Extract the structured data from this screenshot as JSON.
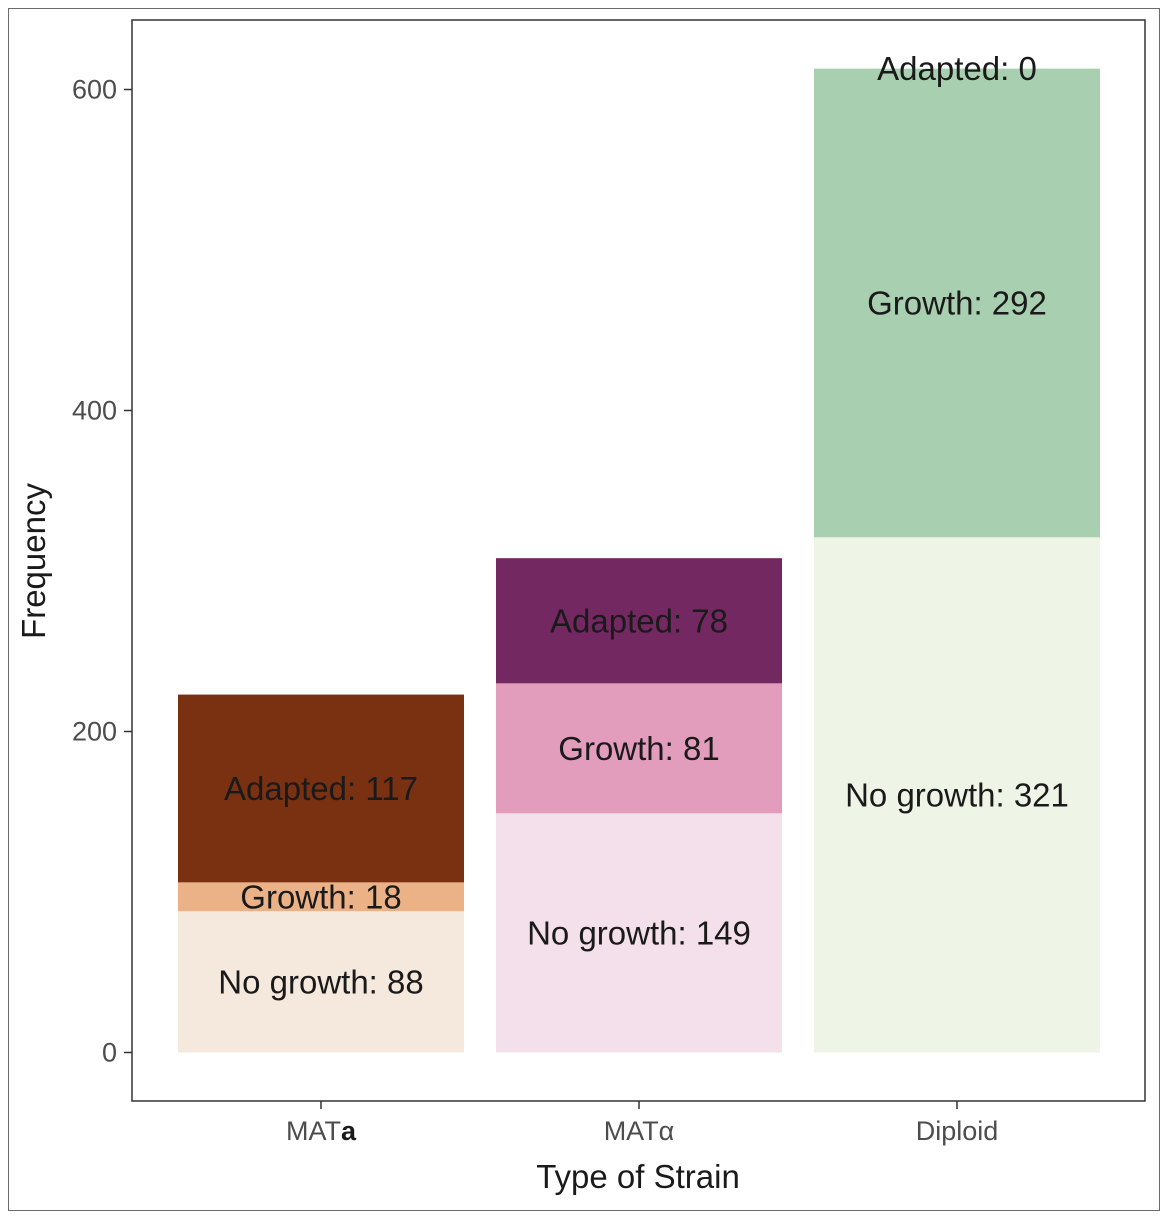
{
  "chart_data": {
    "type": "bar",
    "stacked": true,
    "title": "",
    "xlabel": "Type of Strain",
    "ylabel": "Frequency",
    "ylim": [
      -25,
      648
    ],
    "yticks": [
      0,
      200,
      400,
      600
    ],
    "grid": false,
    "legend": "none",
    "categories": [
      {
        "parts": [
          {
            "text": "MAT",
            "bold": false
          },
          {
            "text": "a",
            "bold": true
          }
        ]
      },
      {
        "parts": [
          {
            "text": "MATα",
            "bold": false
          }
        ]
      },
      {
        "parts": [
          {
            "text": "Diploid",
            "bold": false
          }
        ]
      }
    ],
    "bars": [
      {
        "segments": [
          {
            "value": 88,
            "label": "No growth: 88",
            "color": "#f5e8dc"
          },
          {
            "value": 18,
            "label": "Growth: 18",
            "color": "#ecb287"
          },
          {
            "value": 117,
            "label": "Adapted: 117",
            "color": "#793112"
          }
        ]
      },
      {
        "segments": [
          {
            "value": 149,
            "label": "No growth: 149",
            "color": "#f3e0ea"
          },
          {
            "value": 81,
            "label": "Growth: 81",
            "color": "#e29dbc"
          },
          {
            "value": 78,
            "label": "Adapted: 78",
            "color": "#742862"
          }
        ]
      },
      {
        "segments": [
          {
            "value": 321,
            "label": "No growth: 321",
            "color": "#eff5e6"
          },
          {
            "value": 292,
            "label": "Growth: 292",
            "color": "#a8cfb0"
          },
          {
            "value": 0,
            "label": "Adapted: 0",
            "color": "#4f9a6a"
          }
        ]
      }
    ]
  }
}
